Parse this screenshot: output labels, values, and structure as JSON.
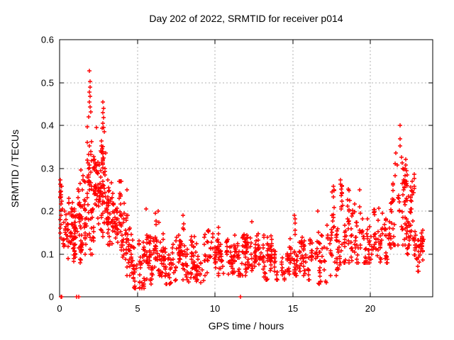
{
  "chart_data": {
    "type": "scatter",
    "title": "Day 202 of 2022, SRMTID for receiver p014",
    "xlabel": "GPS time / hours",
    "ylabel": "SRMTID / TECUs",
    "xlim": [
      0,
      24
    ],
    "ylim": [
      0,
      0.6
    ],
    "xticks": [
      {
        "v": 0,
        "label": "0"
      },
      {
        "v": 5,
        "label": "5"
      },
      {
        "v": 10,
        "label": "10"
      },
      {
        "v": 15,
        "label": "15"
      },
      {
        "v": 20,
        "label": "20"
      }
    ],
    "yticks": [
      {
        "v": 0.0,
        "label": "0"
      },
      {
        "v": 0.1,
        "label": "0.1"
      },
      {
        "v": 0.2,
        "label": "0.2"
      },
      {
        "v": 0.3,
        "label": "0.3"
      },
      {
        "v": 0.4,
        "label": "0.4"
      },
      {
        "v": 0.5,
        "label": "0.5"
      },
      {
        "v": 0.6,
        "label": "0.6"
      }
    ],
    "grid": true,
    "legend": "none",
    "marker": "plus",
    "marker_color": "#ff0000",
    "grid_color": "#b0b0b0",
    "axis_color": "#000000",
    "seed": 20220714,
    "cluster_segments": [
      {
        "x0": 0.0,
        "x1": 0.3,
        "n": 22,
        "y_lo": 0.1,
        "y_hi": 0.27,
        "y_mode": 0.19
      },
      {
        "x0": 0.3,
        "x1": 0.8,
        "n": 40,
        "y_lo": 0.09,
        "y_hi": 0.23,
        "y_mode": 0.15
      },
      {
        "x0": 0.8,
        "x1": 1.2,
        "n": 45,
        "y_lo": 0.08,
        "y_hi": 0.26,
        "y_mode": 0.15
      },
      {
        "x0": 1.2,
        "x1": 1.6,
        "n": 50,
        "y_lo": 0.08,
        "y_hi": 0.31,
        "y_mode": 0.18
      },
      {
        "x0": 1.6,
        "x1": 2.1,
        "n": 62,
        "y_lo": 0.1,
        "y_hi": 0.43,
        "y_mode": 0.24
      },
      {
        "x0": 2.1,
        "x1": 2.6,
        "n": 55,
        "y_lo": 0.13,
        "y_hi": 0.39,
        "y_mode": 0.25
      },
      {
        "x0": 2.6,
        "x1": 3.0,
        "n": 50,
        "y_lo": 0.14,
        "y_hi": 0.4,
        "y_mode": 0.26
      },
      {
        "x0": 3.0,
        "x1": 3.5,
        "n": 52,
        "y_lo": 0.12,
        "y_hi": 0.33,
        "y_mode": 0.21
      },
      {
        "x0": 3.5,
        "x1": 4.2,
        "n": 55,
        "y_lo": 0.09,
        "y_hi": 0.27,
        "y_mode": 0.17
      },
      {
        "x0": 4.2,
        "x1": 4.7,
        "n": 45,
        "y_lo": 0.05,
        "y_hi": 0.22,
        "y_mode": 0.11
      },
      {
        "x0": 4.7,
        "x1": 5.5,
        "n": 55,
        "y_lo": 0.02,
        "y_hi": 0.14,
        "y_mode": 0.07
      },
      {
        "x0": 5.5,
        "x1": 6.0,
        "n": 40,
        "y_lo": 0.03,
        "y_hi": 0.2,
        "y_mode": 0.09
      },
      {
        "x0": 6.0,
        "x1": 6.6,
        "n": 42,
        "y_lo": 0.04,
        "y_hi": 0.2,
        "y_mode": 0.1
      },
      {
        "x0": 6.6,
        "x1": 7.5,
        "n": 52,
        "y_lo": 0.03,
        "y_hi": 0.16,
        "y_mode": 0.08
      },
      {
        "x0": 7.5,
        "x1": 8.3,
        "n": 50,
        "y_lo": 0.04,
        "y_hi": 0.19,
        "y_mode": 0.1
      },
      {
        "x0": 8.3,
        "x1": 9.3,
        "n": 56,
        "y_lo": 0.03,
        "y_hi": 0.14,
        "y_mode": 0.08
      },
      {
        "x0": 9.3,
        "x1": 10.3,
        "n": 56,
        "y_lo": 0.05,
        "y_hi": 0.17,
        "y_mode": 0.1
      },
      {
        "x0": 10.3,
        "x1": 11.3,
        "n": 56,
        "y_lo": 0.04,
        "y_hi": 0.15,
        "y_mode": 0.09
      },
      {
        "x0": 11.3,
        "x1": 12.0,
        "n": 45,
        "y_lo": 0.05,
        "y_hi": 0.16,
        "y_mode": 0.1
      },
      {
        "x0": 12.0,
        "x1": 12.8,
        "n": 50,
        "y_lo": 0.05,
        "y_hi": 0.17,
        "y_mode": 0.1
      },
      {
        "x0": 12.8,
        "x1": 13.8,
        "n": 56,
        "y_lo": 0.04,
        "y_hi": 0.16,
        "y_mode": 0.09
      },
      {
        "x0": 13.8,
        "x1": 14.8,
        "n": 50,
        "y_lo": 0.04,
        "y_hi": 0.15,
        "y_mode": 0.08
      },
      {
        "x0": 14.8,
        "x1": 15.5,
        "n": 42,
        "y_lo": 0.05,
        "y_hi": 0.19,
        "y_mode": 0.1
      },
      {
        "x0": 15.5,
        "x1": 16.5,
        "n": 50,
        "y_lo": 0.04,
        "y_hi": 0.16,
        "y_mode": 0.09
      },
      {
        "x0": 16.5,
        "x1": 17.3,
        "n": 42,
        "y_lo": 0.03,
        "y_hi": 0.2,
        "y_mode": 0.09
      },
      {
        "x0": 17.3,
        "x1": 18.0,
        "n": 45,
        "y_lo": 0.05,
        "y_hi": 0.28,
        "y_mode": 0.14
      },
      {
        "x0": 18.0,
        "x1": 18.7,
        "n": 45,
        "y_lo": 0.08,
        "y_hi": 0.26,
        "y_mode": 0.15
      },
      {
        "x0": 18.7,
        "x1": 19.5,
        "n": 45,
        "y_lo": 0.08,
        "y_hi": 0.23,
        "y_mode": 0.14
      },
      {
        "x0": 19.5,
        "x1": 20.5,
        "n": 55,
        "y_lo": 0.08,
        "y_hi": 0.22,
        "y_mode": 0.13
      },
      {
        "x0": 20.5,
        "x1": 21.3,
        "n": 50,
        "y_lo": 0.08,
        "y_hi": 0.22,
        "y_mode": 0.14
      },
      {
        "x0": 21.3,
        "x1": 22.3,
        "n": 62,
        "y_lo": 0.12,
        "y_hi": 0.37,
        "y_mode": 0.22
      },
      {
        "x0": 22.3,
        "x1": 22.8,
        "n": 45,
        "y_lo": 0.1,
        "y_hi": 0.3,
        "y_mode": 0.18
      },
      {
        "x0": 22.8,
        "x1": 23.4,
        "n": 45,
        "y_lo": 0.06,
        "y_hi": 0.2,
        "y_mode": 0.12
      }
    ],
    "extreme_points": [
      [
        0.07,
        0.0
      ],
      [
        0.13,
        0.0
      ],
      [
        1.1,
        0.0
      ],
      [
        1.22,
        0.0
      ],
      [
        11.62,
        0.0
      ],
      [
        0.05,
        0.272
      ],
      [
        0.1,
        0.258
      ],
      [
        1.93,
        0.527
      ],
      [
        1.95,
        0.502
      ],
      [
        1.96,
        0.49
      ],
      [
        1.92,
        0.478
      ],
      [
        1.97,
        0.468
      ],
      [
        1.9,
        0.455
      ],
      [
        1.95,
        0.443
      ],
      [
        2.0,
        0.432
      ],
      [
        1.88,
        0.42
      ],
      [
        2.35,
        0.395
      ],
      [
        2.78,
        0.455
      ],
      [
        2.82,
        0.44
      ],
      [
        2.8,
        0.43
      ],
      [
        2.84,
        0.418
      ],
      [
        2.77,
        0.405
      ],
      [
        2.81,
        0.395
      ],
      [
        2.86,
        0.385
      ],
      [
        4.35,
        0.25
      ],
      [
        5.55,
        0.205
      ],
      [
        6.35,
        0.2
      ],
      [
        7.95,
        0.19
      ],
      [
        12.35,
        0.175
      ],
      [
        15.1,
        0.19
      ],
      [
        16.6,
        0.2
      ],
      [
        17.5,
        0.245
      ],
      [
        18.05,
        0.272
      ],
      [
        18.08,
        0.262
      ],
      [
        18.12,
        0.252
      ],
      [
        18.6,
        0.248
      ],
      [
        19.3,
        0.25
      ],
      [
        21.88,
        0.4
      ],
      [
        21.9,
        0.368
      ],
      [
        21.92,
        0.352
      ],
      [
        21.62,
        0.335
      ],
      [
        21.97,
        0.325
      ],
      [
        22.02,
        0.312
      ],
      [
        21.7,
        0.308
      ],
      [
        22.1,
        0.3
      ],
      [
        22.3,
        0.295
      ],
      [
        22.35,
        0.285
      ]
    ]
  }
}
